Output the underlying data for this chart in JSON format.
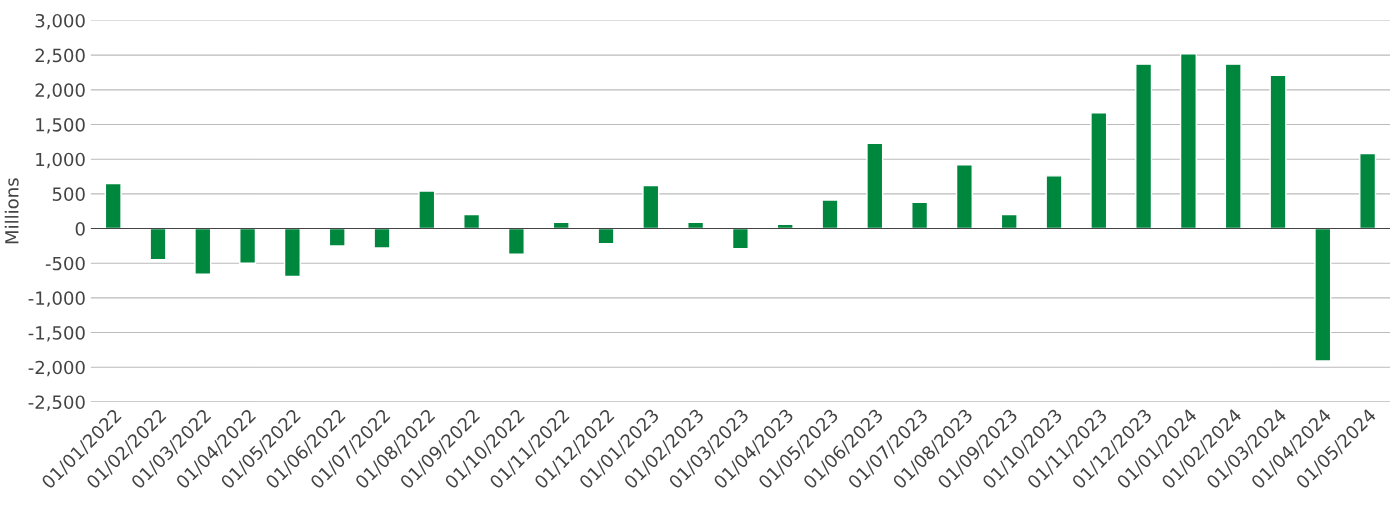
{
  "chart_data": {
    "type": "bar",
    "ylabel": "Millions",
    "categories": [
      "01/01/2022",
      "01/02/2022",
      "01/03/2022",
      "01/04/2022",
      "01/05/2022",
      "01/06/2022",
      "01/07/2022",
      "01/08/2022",
      "01/09/2022",
      "01/10/2022",
      "01/11/2022",
      "01/12/2022",
      "01/01/2023",
      "01/02/2023",
      "01/03/2023",
      "01/04/2023",
      "01/05/2023",
      "01/06/2023",
      "01/07/2023",
      "01/08/2023",
      "01/09/2023",
      "01/10/2023",
      "01/11/2023",
      "01/12/2023",
      "01/01/2024",
      "01/02/2024",
      "01/03/2024",
      "01/04/2024",
      "01/05/2024"
    ],
    "values": [
      650,
      -450,
      -660,
      -500,
      -690,
      -250,
      -280,
      540,
      200,
      -370,
      90,
      -220,
      620,
      90,
      -290,
      60,
      410,
      1230,
      380,
      920,
      200,
      760,
      1670,
      2370,
      2520,
      2370,
      2210,
      -1910,
      1080
    ],
    "color": "#00873e",
    "ylim": [
      -2500,
      3000
    ],
    "yticks": [
      {
        "value": -2500,
        "label": "-2,500"
      },
      {
        "value": -2000,
        "label": "-2,000"
      },
      {
        "value": -1500,
        "label": "-1,500"
      },
      {
        "value": -1000,
        "label": "-1,000"
      },
      {
        "value": -500,
        "label": "-500"
      },
      0,
      500,
      {
        "value": 1000,
        "label": "1,000"
      },
      {
        "value": 1500,
        "label": "1,500"
      },
      {
        "value": 2000,
        "label": "2,000"
      },
      {
        "value": 2500,
        "label": "2,500"
      },
      {
        "value": 3000,
        "label": "3,000"
      }
    ],
    "grid": "y"
  }
}
